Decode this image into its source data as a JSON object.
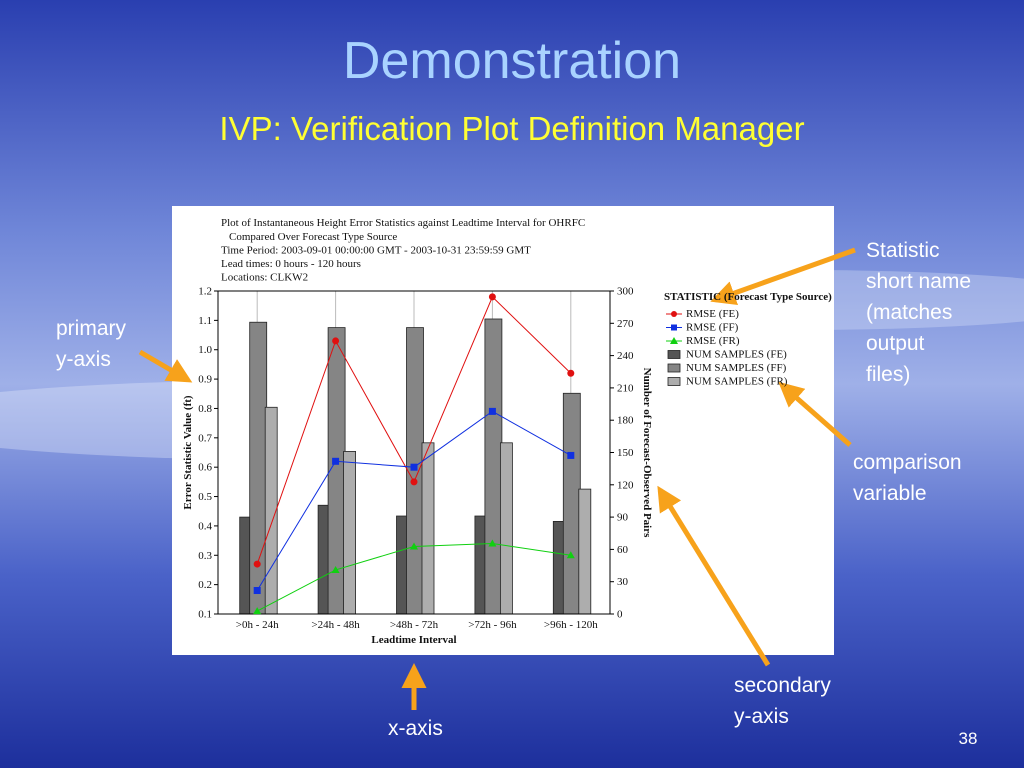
{
  "slide": {
    "title": "Demonstration",
    "subtitle": "IVP: Verification Plot Definition Manager",
    "page_number": "38",
    "annotations": [
      {
        "lines": [
          "Statistic",
          "short name",
          "(matches",
          "output",
          "files)"
        ]
      },
      {
        "lines": [
          "primary",
          "y-axis"
        ]
      },
      {
        "lines": [
          "comparison",
          "variable"
        ]
      },
      {
        "lines": [
          "secondary",
          "y-axis"
        ]
      },
      {
        "lines": [
          "x-axis"
        ]
      }
    ]
  },
  "chart_data": {
    "type": "bar",
    "title": "Plot of Instantaneous Height Error Statistics against Leadtime Interval for OHRFC",
    "subtitle": [
      "Compared Over Forecast Type Source",
      "Time Period: 2003-09-01 00:00:00 GMT - 2003-10-31 23:59:59 GMT",
      "Lead times: 0 hours - 120 hours",
      "Locations: CLKW2"
    ],
    "x_label": "Leadtime Interval",
    "y_label": "Error Statistic Value (ft)",
    "y2_label": "Number of Forecast-Observed Pairs",
    "legend_title": "STATISTIC (Forecast Type Source)",
    "legend": "upper right",
    "categories": [
      ">0h - 24h",
      ">24h - 48h",
      ">48h - 72h",
      ">72h - 96h",
      ">96h - 120h"
    ],
    "ylim": [
      0.1,
      1.2
    ],
    "yticks": [
      0.1,
      0.2,
      0.3,
      0.4,
      0.5,
      0.6,
      0.7,
      0.8,
      0.9,
      {
        "value": 1,
        "label": "1.0"
      },
      1.1,
      1.2
    ],
    "y2lim": [
      0,
      300
    ],
    "y2ticks": [
      0,
      30,
      60,
      90,
      120,
      150,
      180,
      210,
      240,
      270,
      300
    ],
    "grid": true,
    "series": [
      {
        "name": "RMSE (FE)",
        "type": "line",
        "marker": "circle",
        "color": "#e01010",
        "values": [
          0.27,
          1.03,
          0.55,
          1.18,
          0.92
        ]
      },
      {
        "name": "RMSE (FF)",
        "type": "line",
        "marker": "square",
        "color": "#1030e0",
        "values": [
          0.18,
          0.62,
          0.6,
          0.79,
          0.64
        ]
      },
      {
        "name": "RMSE (FR)",
        "type": "line",
        "marker": "triangle",
        "color": "#10d010",
        "values": [
          0.11,
          0.25,
          0.33,
          0.34,
          0.3
        ]
      },
      {
        "name": "NUM SAMPLES (FE)",
        "type": "bar",
        "axis": "y2",
        "color": "#555555",
        "values": [
          90,
          101,
          91,
          91,
          86
        ]
      },
      {
        "name": "NUM SAMPLES (FF)",
        "type": "bar",
        "axis": "y2",
        "color": "#858585",
        "values": [
          271,
          266,
          266,
          274,
          205
        ]
      },
      {
        "name": "NUM SAMPLES (FR)",
        "type": "bar",
        "axis": "y2",
        "color": "#adadad",
        "values": [
          192,
          151,
          159,
          159,
          116
        ]
      }
    ]
  }
}
